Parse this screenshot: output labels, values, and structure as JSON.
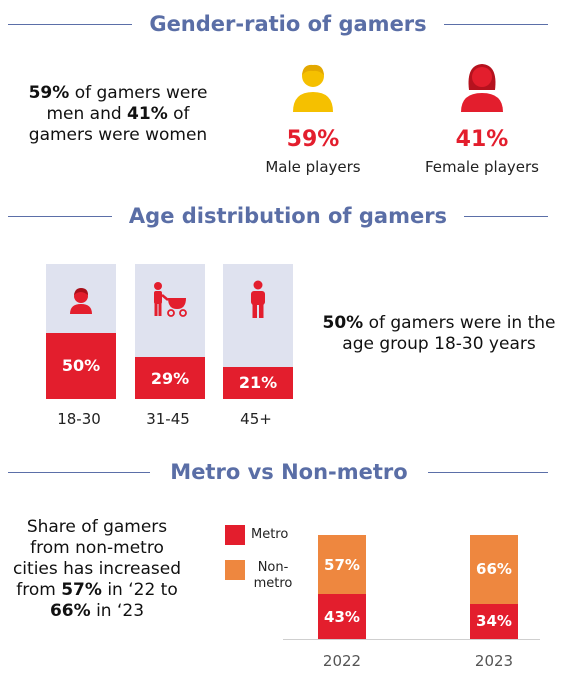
{
  "colors": {
    "accent_red": "#e31e2d",
    "orange": "#ee873f",
    "yellow": "#f5c000",
    "header_blue": "#5a6ea6",
    "age_bg": "#dfe2ef"
  },
  "gender": {
    "title": "Gender-ratio of gamers",
    "summary": {
      "p1": "59%",
      "t1": " of gamers were men and ",
      "p2": "41%",
      "t2": " of gamers were women"
    },
    "male": {
      "pct": "59%",
      "label": "Male players",
      "icon": "male-person-icon"
    },
    "female": {
      "pct": "41%",
      "label": "Female players",
      "icon": "female-person-icon"
    }
  },
  "age": {
    "title": "Age distribution of gamers",
    "summary": {
      "p": "50%",
      "t": " of gamers were in the age group 18-30 years"
    }
  },
  "metro": {
    "title": "Metro vs Non-metro",
    "summary": {
      "t1": "Share of gamers from non-metro cities has increased from ",
      "p1": "57%",
      "t2": " in ‘22 to ",
      "p2": "66%",
      "t3": " in ‘23"
    },
    "legend": [
      {
        "label": "Metro",
        "color": "#e31e2d"
      },
      {
        "label": "Non-metro",
        "color": "#ee873f"
      }
    ]
  },
  "chart_data": [
    {
      "type": "bar",
      "categories": [
        "18-30",
        "31-45",
        "45+"
      ],
      "values": [
        50,
        29,
        21
      ],
      "value_labels": [
        "50%",
        "29%",
        "21%"
      ],
      "ylim": [
        0,
        100
      ],
      "icons": [
        "boy-icon",
        "parent-with-stroller-icon",
        "adult-person-icon"
      ]
    },
    {
      "type": "bar",
      "stacked": true,
      "categories": [
        "2022",
        "2023"
      ],
      "series": [
        {
          "name": "Metro",
          "values": [
            43,
            34
          ],
          "labels": [
            "43%",
            "34%"
          ],
          "color": "#e31e2d"
        },
        {
          "name": "Non-metro",
          "values": [
            57,
            66
          ],
          "labels": [
            "57%",
            "66%"
          ],
          "color": "#ee873f"
        }
      ]
    }
  ]
}
